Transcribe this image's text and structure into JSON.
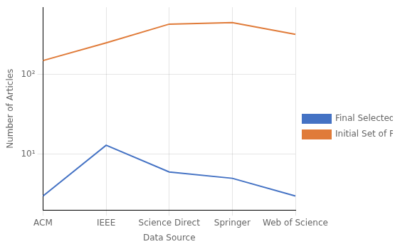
{
  "chart_data": {
    "type": "line",
    "categories": [
      "ACM",
      "IEEE",
      "Science Direct",
      "Springer",
      "Web of Science"
    ],
    "series": [
      {
        "name": "Final Selected Papers",
        "color": "#4472C4",
        "values": [
          3,
          13,
          6,
          5,
          3
        ]
      },
      {
        "name": "Initial Set of Papers",
        "color": "#E07B39",
        "values": [
          150,
          250,
          430,
          450,
          320
        ]
      }
    ],
    "xlabel": "Data Source",
    "ylabel": "Number of Articles",
    "log": "y",
    "ylim": [
      2,
      700
    ],
    "yticks": [
      {
        "value": 10,
        "label": "10¹"
      },
      {
        "value": 100,
        "label": "10²"
      }
    ],
    "grid": true,
    "legend": "right"
  }
}
